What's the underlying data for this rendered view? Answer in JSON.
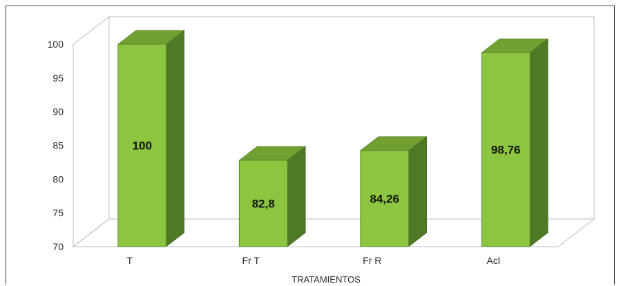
{
  "chart_data": {
    "type": "bar",
    "categories": [
      "T",
      "Fr T",
      "Fr R",
      "Acl"
    ],
    "values": [
      100,
      82.8,
      84.26,
      98.76
    ],
    "value_labels": [
      "100",
      "82,8",
      "84,26",
      "98,76"
    ],
    "y_ticks": [
      "70",
      "75",
      "80",
      "85",
      "90",
      "95",
      "100"
    ],
    "ylim": [
      70,
      100
    ],
    "xlabel": "TRATAMIENTOS",
    "ylabel": "",
    "title": "",
    "grid": false,
    "style": "3d",
    "colors": {
      "bar_front": "#8cc53f",
      "bar_top": "#6fa030",
      "bar_side": "#4f7a25"
    }
  }
}
